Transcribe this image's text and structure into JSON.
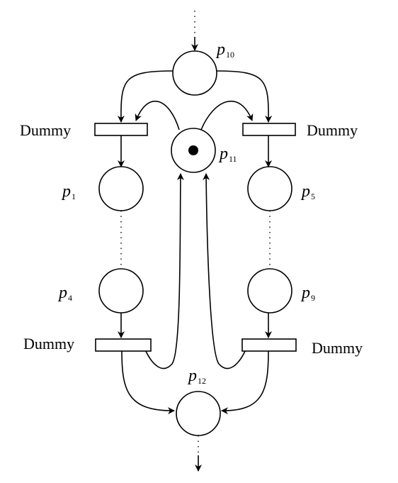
{
  "places": {
    "p10": {
      "letter": "p",
      "sub": "10",
      "tokens": 0
    },
    "p11": {
      "letter": "p",
      "sub": "11",
      "tokens": 1
    },
    "p12": {
      "letter": "p",
      "sub": "12",
      "tokens": 0
    },
    "p1": {
      "letter": "p",
      "sub": "1",
      "tokens": 0
    },
    "p4": {
      "letter": "p",
      "sub": "4",
      "tokens": 0
    },
    "p5": {
      "letter": "p",
      "sub": "5",
      "tokens": 0
    },
    "p9": {
      "letter": "p",
      "sub": "9",
      "tokens": 0
    }
  },
  "transitions": {
    "top_left": {
      "label": "Dummy"
    },
    "top_right": {
      "label": "Dummy"
    },
    "bottom_left": {
      "label": "Dummy"
    },
    "bottom_right": {
      "label": "Dummy"
    }
  }
}
